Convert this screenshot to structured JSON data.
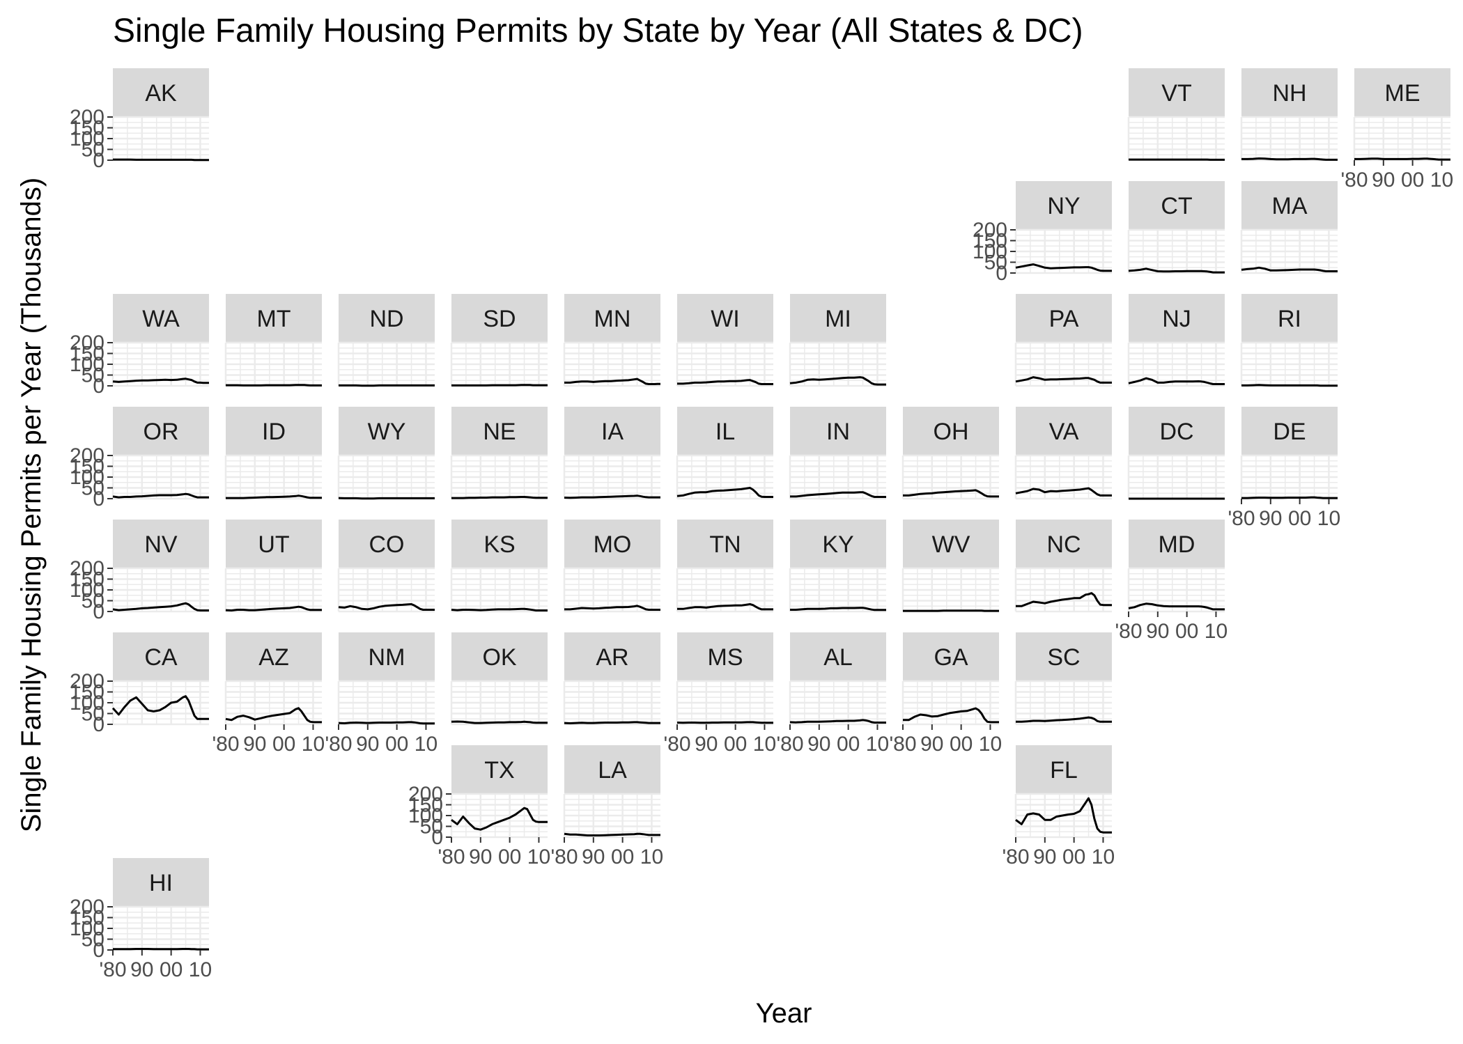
{
  "chart_data": {
    "type": "line",
    "title": "Single Family Housing Permits by State by Year (All States & DC)",
    "xlabel": "Year",
    "ylabel": "Single Family Housing Permits per Year (Thousands)",
    "xlim": [
      1980,
      2013
    ],
    "ylim": [
      0,
      200
    ],
    "y_ticks": [
      0,
      50,
      100,
      150,
      200
    ],
    "y_tick_labels": [
      "0",
      "50",
      "100",
      "150",
      "200"
    ],
    "x_ticks": [
      1980,
      1990,
      2000,
      2010
    ],
    "x_tick_labels": [
      "'80",
      "90",
      "00",
      "10"
    ],
    "grid": true,
    "line_color": "#000000",
    "strip_color": "#d9d9d9",
    "grid_color": "#ebebeb",
    "years": [
      1980,
      1982,
      1984,
      1986,
      1988,
      1990,
      1992,
      1994,
      1996,
      1998,
      2000,
      2002,
      2004,
      2005,
      2006,
      2007,
      2008,
      2009,
      2010,
      2011,
      2012,
      2013
    ],
    "states": [
      {
        "name": "AK",
        "values": [
          3,
          3,
          3,
          3,
          2,
          2,
          2,
          2,
          2,
          2,
          2,
          2,
          2,
          2,
          2,
          2,
          1,
          1,
          1,
          1,
          1,
          1
        ]
      },
      {
        "name": "VT",
        "values": [
          3,
          3,
          3,
          3,
          3,
          3,
          3,
          3,
          3,
          3,
          3,
          3,
          3,
          3,
          3,
          3,
          2,
          2,
          2,
          2,
          2,
          2
        ]
      },
      {
        "name": "NH",
        "values": [
          5,
          5,
          6,
          8,
          7,
          5,
          4,
          4,
          4,
          5,
          5,
          5,
          6,
          6,
          5,
          4,
          3,
          2,
          2,
          2,
          2,
          2
        ]
      },
      {
        "name": "ME",
        "values": [
          5,
          5,
          6,
          7,
          7,
          5,
          5,
          5,
          5,
          5,
          6,
          6,
          7,
          7,
          6,
          5,
          4,
          3,
          3,
          3,
          3,
          3
        ]
      },
      {
        "name": "NY",
        "values": [
          25,
          30,
          35,
          40,
          33,
          25,
          22,
          23,
          24,
          25,
          26,
          26,
          27,
          27,
          25,
          20,
          15,
          11,
          10,
          10,
          10,
          10
        ]
      },
      {
        "name": "CT",
        "values": [
          10,
          12,
          15,
          20,
          14,
          8,
          7,
          7,
          8,
          8,
          9,
          9,
          9,
          9,
          8,
          7,
          5,
          3,
          3,
          3,
          3,
          3
        ]
      },
      {
        "name": "MA",
        "values": [
          15,
          18,
          20,
          25,
          20,
          12,
          12,
          13,
          14,
          15,
          16,
          16,
          16,
          16,
          15,
          13,
          10,
          8,
          8,
          8,
          8,
          8
        ]
      },
      {
        "name": "WA",
        "values": [
          20,
          18,
          20,
          22,
          24,
          25,
          25,
          26,
          27,
          28,
          27,
          28,
          32,
          33,
          30,
          27,
          20,
          15,
          15,
          14,
          14,
          14
        ]
      },
      {
        "name": "MT",
        "values": [
          3,
          3,
          3,
          2,
          2,
          2,
          2,
          3,
          3,
          3,
          3,
          3,
          4,
          4,
          4,
          4,
          3,
          2,
          2,
          2,
          2,
          2
        ]
      },
      {
        "name": "ND",
        "values": [
          2,
          2,
          2,
          2,
          1,
          1,
          1,
          2,
          2,
          2,
          2,
          2,
          2,
          2,
          2,
          2,
          2,
          2,
          2,
          2,
          2,
          2
        ]
      },
      {
        "name": "SD",
        "values": [
          2,
          2,
          2,
          2,
          2,
          2,
          2,
          3,
          3,
          3,
          3,
          3,
          4,
          4,
          4,
          4,
          3,
          3,
          3,
          3,
          3,
          3
        ]
      },
      {
        "name": "MN",
        "values": [
          15,
          15,
          18,
          20,
          20,
          18,
          20,
          22,
          22,
          24,
          25,
          26,
          30,
          32,
          25,
          18,
          10,
          8,
          8,
          8,
          9,
          9
        ]
      },
      {
        "name": "WI",
        "values": [
          10,
          10,
          12,
          15,
          15,
          16,
          18,
          20,
          20,
          22,
          22,
          23,
          26,
          27,
          22,
          17,
          10,
          8,
          8,
          8,
          8,
          8
        ]
      },
      {
        "name": "MI",
        "values": [
          12,
          15,
          20,
          28,
          30,
          28,
          30,
          32,
          34,
          36,
          38,
          38,
          40,
          38,
          30,
          22,
          12,
          7,
          6,
          6,
          6,
          6
        ]
      },
      {
        "name": "PA",
        "values": [
          20,
          25,
          30,
          40,
          35,
          28,
          30,
          30,
          31,
          32,
          33,
          34,
          36,
          36,
          32,
          28,
          20,
          15,
          15,
          15,
          15,
          15
        ]
      },
      {
        "name": "NJ",
        "values": [
          12,
          18,
          25,
          35,
          28,
          15,
          15,
          18,
          20,
          20,
          20,
          20,
          21,
          20,
          18,
          15,
          11,
          8,
          8,
          8,
          8,
          8
        ]
      },
      {
        "name": "RI",
        "values": [
          2,
          2,
          3,
          4,
          3,
          2,
          2,
          2,
          2,
          2,
          2,
          2,
          2,
          2,
          2,
          1,
          1,
          1,
          1,
          1,
          1,
          1
        ]
      },
      {
        "name": "OR",
        "values": [
          10,
          6,
          8,
          8,
          10,
          11,
          13,
          15,
          16,
          16,
          16,
          17,
          20,
          22,
          20,
          15,
          10,
          6,
          6,
          6,
          6,
          6
        ]
      },
      {
        "name": "ID",
        "values": [
          3,
          3,
          3,
          3,
          4,
          5,
          6,
          7,
          7,
          8,
          9,
          10,
          12,
          14,
          12,
          9,
          6,
          4,
          4,
          4,
          4,
          4
        ]
      },
      {
        "name": "WY",
        "values": [
          3,
          2,
          2,
          2,
          1,
          1,
          1,
          2,
          2,
          2,
          2,
          2,
          2,
          2,
          2,
          2,
          2,
          2,
          2,
          2,
          2,
          2
        ]
      },
      {
        "name": "NE",
        "values": [
          3,
          3,
          3,
          4,
          4,
          5,
          5,
          6,
          6,
          6,
          7,
          7,
          8,
          8,
          7,
          6,
          5,
          4,
          4,
          4,
          4,
          4
        ]
      },
      {
        "name": "IA",
        "values": [
          5,
          4,
          5,
          6,
          6,
          6,
          7,
          8,
          9,
          10,
          11,
          12,
          13,
          14,
          12,
          9,
          7,
          6,
          6,
          6,
          6,
          6
        ]
      },
      {
        "name": "IL",
        "values": [
          12,
          15,
          22,
          28,
          30,
          30,
          35,
          37,
          38,
          40,
          42,
          44,
          48,
          50,
          42,
          30,
          15,
          9,
          8,
          8,
          8,
          8
        ]
      },
      {
        "name": "IN",
        "values": [
          10,
          10,
          13,
          16,
          18,
          20,
          22,
          24,
          26,
          28,
          28,
          28,
          30,
          30,
          25,
          18,
          12,
          8,
          8,
          8,
          8,
          8
        ]
      },
      {
        "name": "OH",
        "values": [
          15,
          15,
          18,
          22,
          24,
          25,
          28,
          30,
          32,
          34,
          35,
          36,
          38,
          39,
          33,
          25,
          16,
          11,
          10,
          10,
          10,
          10
        ]
      },
      {
        "name": "VA",
        "values": [
          25,
          30,
          35,
          45,
          42,
          30,
          35,
          34,
          36,
          38,
          40,
          42,
          46,
          48,
          40,
          30,
          20,
          15,
          15,
          15,
          15,
          15
        ]
      },
      {
        "name": "DC",
        "values": [
          0,
          0,
          0,
          0,
          0,
          0,
          0,
          0,
          0,
          0,
          0,
          0,
          0,
          0,
          0,
          0,
          0,
          0,
          0,
          0,
          0,
          0
        ]
      },
      {
        "name": "DE",
        "values": [
          3,
          3,
          4,
          5,
          5,
          4,
          4,
          4,
          5,
          5,
          5,
          5,
          6,
          6,
          5,
          4,
          3,
          3,
          3,
          3,
          3,
          3
        ]
      },
      {
        "name": "NV",
        "values": [
          10,
          6,
          8,
          10,
          12,
          15,
          16,
          18,
          20,
          22,
          24,
          28,
          35,
          38,
          33,
          22,
          12,
          6,
          5,
          5,
          5,
          5
        ]
      },
      {
        "name": "UT",
        "values": [
          6,
          5,
          8,
          8,
          6,
          6,
          8,
          10,
          12,
          14,
          15,
          16,
          20,
          22,
          20,
          15,
          10,
          7,
          7,
          7,
          7,
          7
        ]
      },
      {
        "name": "CO",
        "values": [
          20,
          18,
          25,
          20,
          12,
          10,
          15,
          22,
          26,
          28,
          30,
          31,
          33,
          34,
          28,
          20,
          12,
          8,
          8,
          8,
          8,
          8
        ]
      },
      {
        "name": "KS",
        "values": [
          8,
          6,
          8,
          8,
          7,
          6,
          7,
          9,
          10,
          10,
          10,
          11,
          12,
          12,
          11,
          9,
          7,
          5,
          5,
          5,
          5,
          5
        ]
      },
      {
        "name": "MO",
        "values": [
          10,
          10,
          13,
          16,
          15,
          14,
          15,
          17,
          18,
          20,
          20,
          21,
          24,
          26,
          22,
          16,
          10,
          8,
          8,
          8,
          8,
          8
        ]
      },
      {
        "name": "TN",
        "values": [
          12,
          12,
          16,
          20,
          20,
          18,
          22,
          25,
          26,
          27,
          28,
          28,
          32,
          34,
          30,
          22,
          15,
          10,
          10,
          10,
          10,
          10
        ]
      },
      {
        "name": "KY",
        "values": [
          8,
          8,
          10,
          12,
          12,
          12,
          13,
          15,
          15,
          16,
          16,
          16,
          17,
          17,
          15,
          12,
          9,
          7,
          7,
          7,
          7,
          7
        ]
      },
      {
        "name": "WV",
        "values": [
          3,
          3,
          3,
          3,
          3,
          3,
          3,
          4,
          4,
          4,
          4,
          4,
          4,
          4,
          4,
          4,
          3,
          3,
          3,
          3,
          3,
          3
        ]
      },
      {
        "name": "NC",
        "values": [
          25,
          25,
          35,
          45,
          42,
          38,
          45,
          50,
          55,
          58,
          62,
          62,
          78,
          80,
          85,
          75,
          50,
          32,
          30,
          30,
          30,
          30
        ]
      },
      {
        "name": "MD",
        "values": [
          15,
          20,
          30,
          36,
          34,
          28,
          25,
          24,
          24,
          24,
          24,
          24,
          24,
          23,
          21,
          18,
          14,
          10,
          10,
          10,
          10,
          10
        ]
      },
      {
        "name": "CA",
        "values": [
          75,
          45,
          80,
          110,
          125,
          95,
          65,
          60,
          65,
          80,
          100,
          105,
          125,
          130,
          110,
          75,
          40,
          25,
          25,
          25,
          25,
          25
        ]
      },
      {
        "name": "AZ",
        "values": [
          25,
          20,
          35,
          40,
          33,
          22,
          28,
          35,
          40,
          44,
          48,
          52,
          70,
          75,
          60,
          40,
          20,
          12,
          10,
          10,
          10,
          10
        ]
      },
      {
        "name": "NM",
        "values": [
          6,
          5,
          7,
          8,
          7,
          6,
          7,
          8,
          8,
          8,
          9,
          9,
          10,
          10,
          9,
          7,
          5,
          4,
          4,
          4,
          4,
          4
        ]
      },
      {
        "name": "OK",
        "values": [
          12,
          13,
          12,
          9,
          6,
          6,
          7,
          8,
          9,
          9,
          10,
          10,
          11,
          12,
          11,
          10,
          8,
          7,
          7,
          7,
          7,
          7
        ]
      },
      {
        "name": "AR",
        "values": [
          6,
          5,
          6,
          7,
          6,
          6,
          7,
          8,
          8,
          8,
          9,
          9,
          10,
          10,
          9,
          8,
          7,
          6,
          6,
          6,
          6,
          6
        ]
      },
      {
        "name": "MS",
        "values": [
          8,
          7,
          8,
          8,
          7,
          7,
          8,
          8,
          9,
          9,
          9,
          9,
          10,
          10,
          10,
          9,
          8,
          7,
          7,
          7,
          7,
          7
        ]
      },
      {
        "name": "AL",
        "values": [
          10,
          9,
          10,
          12,
          12,
          12,
          13,
          14,
          15,
          15,
          16,
          16,
          18,
          20,
          18,
          15,
          10,
          8,
          8,
          8,
          8,
          8
        ]
      },
      {
        "name": "GA",
        "values": [
          20,
          20,
          35,
          45,
          42,
          36,
          38,
          45,
          52,
          56,
          60,
          62,
          70,
          74,
          66,
          50,
          26,
          12,
          10,
          10,
          10,
          10
        ]
      },
      {
        "name": "SC",
        "values": [
          12,
          12,
          14,
          16,
          16,
          15,
          17,
          19,
          20,
          22,
          24,
          26,
          30,
          32,
          30,
          25,
          15,
          12,
          12,
          12,
          12,
          12
        ]
      },
      {
        "name": "TX",
        "values": [
          80,
          60,
          95,
          65,
          40,
          35,
          45,
          60,
          70,
          80,
          90,
          105,
          125,
          135,
          130,
          105,
          80,
          72,
          70,
          70,
          70,
          70
        ]
      },
      {
        "name": "LA",
        "values": [
          15,
          12,
          12,
          10,
          8,
          8,
          8,
          9,
          10,
          11,
          12,
          13,
          14,
          15,
          15,
          14,
          12,
          10,
          10,
          10,
          10,
          10
        ]
      },
      {
        "name": "FL",
        "values": [
          80,
          60,
          105,
          110,
          105,
          80,
          80,
          95,
          100,
          105,
          108,
          120,
          160,
          180,
          150,
          85,
          40,
          25,
          22,
          22,
          22,
          22
        ]
      },
      {
        "name": "HI",
        "values": [
          4,
          4,
          4,
          4,
          5,
          5,
          5,
          4,
          4,
          4,
          4,
          4,
          5,
          5,
          5,
          4,
          4,
          3,
          3,
          3,
          3,
          3
        ]
      }
    ]
  }
}
